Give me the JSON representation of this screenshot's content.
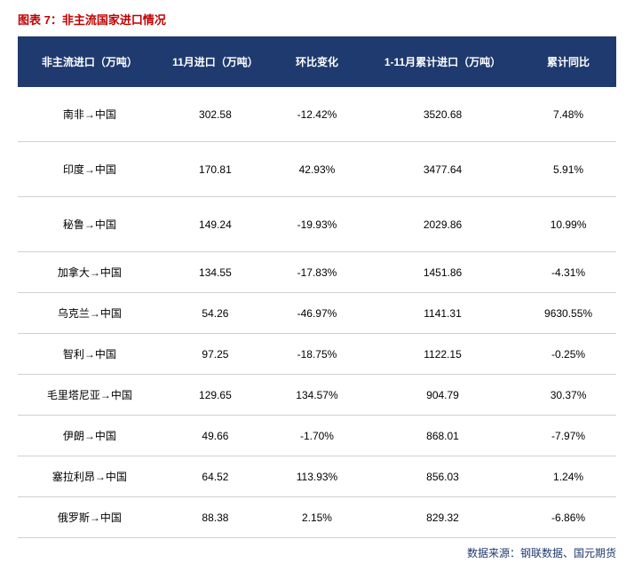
{
  "title": "图表 7：非主流国家进口情况",
  "source": "数据来源：钢联数据、国元期货",
  "table": {
    "columns": [
      "非主流进口（万吨）",
      "11月进口（万吨）",
      "环比变化",
      "1-11月累计进口（万吨）",
      "累计同比"
    ],
    "rows": [
      {
        "route": "南非→中国",
        "nov": "302.58",
        "mom": "-12.42%",
        "ytd": "3520.68",
        "yoy": "7.48%",
        "tall": true
      },
      {
        "route": "印度→中国",
        "nov": "170.81",
        "mom": "42.93%",
        "ytd": "3477.64",
        "yoy": "5.91%",
        "tall": true
      },
      {
        "route": "秘鲁→中国",
        "nov": "149.24",
        "mom": "-19.93%",
        "ytd": "2029.86",
        "yoy": "10.99%",
        "tall": true
      },
      {
        "route": "加拿大→中国",
        "nov": "134.55",
        "mom": "-17.83%",
        "ytd": "1451.86",
        "yoy": "-4.31%",
        "tall": false
      },
      {
        "route": "乌克兰→中国",
        "nov": "54.26",
        "mom": "-46.97%",
        "ytd": "1141.31",
        "yoy": "9630.55%",
        "tall": false
      },
      {
        "route": "智利→中国",
        "nov": "97.25",
        "mom": "-18.75%",
        "ytd": "1122.15",
        "yoy": "-0.25%",
        "tall": false
      },
      {
        "route": "毛里塔尼亚→中国",
        "nov": "129.65",
        "mom": "134.57%",
        "ytd": "904.79",
        "yoy": "30.37%",
        "tall": false
      },
      {
        "route": "伊朗→中国",
        "nov": "49.66",
        "mom": "-1.70%",
        "ytd": "868.01",
        "yoy": "-7.97%",
        "tall": false
      },
      {
        "route": "塞拉利昂→中国",
        "nov": "64.52",
        "mom": "113.93%",
        "ytd": "856.03",
        "yoy": "1.24%",
        "tall": false
      },
      {
        "route": "俄罗斯→中国",
        "nov": "88.38",
        "mom": "2.15%",
        "ytd": "829.32",
        "yoy": "-6.86%",
        "tall": false
      }
    ]
  },
  "colors": {
    "title": "#c00000",
    "header_bg": "#1f3a6e",
    "header_text": "#ffffff",
    "cell_text": "#000000",
    "border": "#d0d0d0",
    "source": "#1f3a6e"
  }
}
